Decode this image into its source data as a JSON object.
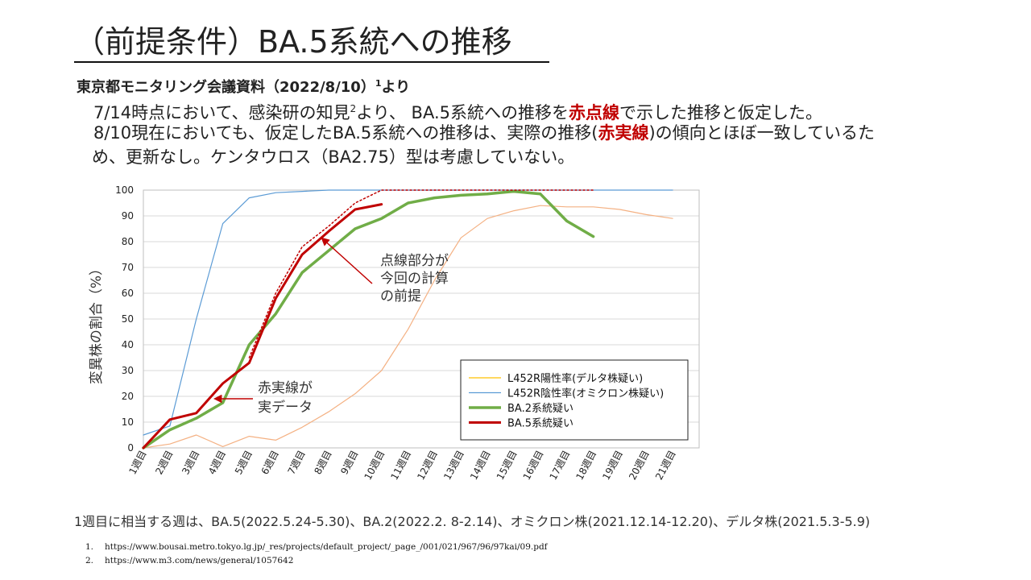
{
  "slide": {
    "title": "（前提条件）BA.5系統への推移",
    "subtitle_main": "東京都モニタリング会議資料（2022/8/10）",
    "subtitle_sup": "1",
    "subtitle_tail": "より",
    "line1_a": "7/14時点において、感染研の知見",
    "line1_sup": "2",
    "line1_b": "より、 BA.5系統への推移を",
    "line1_red": "赤点線",
    "line1_c": "で示した推移と仮定した。",
    "line2_a": "8/10現在においても、仮定したBA.5系統への推移は、実際の推移(",
    "line2_red": "赤実線",
    "line2_b": ")の傾向とほぼ一致しているた",
    "line3": "め、更新なし。ケンタウロス（BA2.75）型は考慮していない。",
    "footnote": "1週目に相当する週は、BA.5(2022.5.24-5.30)、BA.2(2022.2. 8-2.14)、オミクロン株(2021.12.14-12.20)、デルタ株(2021.5.3-5.9)",
    "ref1_num": "1.",
    "ref1": "https://www.bousai.metro.tokyo.lg.jp/_res/projects/default_project/_page_/001/021/967/96/97kai/09.pdf",
    "ref2_num": "2.",
    "ref2": "https://www.m3.com/news/general/1057642"
  },
  "chart_data": {
    "type": "line",
    "ylabel": "変異株の割合（%）",
    "xlabel": "",
    "ylim": [
      0,
      100
    ],
    "yticks": [
      0,
      10,
      20,
      30,
      40,
      50,
      60,
      70,
      80,
      90,
      100
    ],
    "categories": [
      "1週目",
      "2週目",
      "3週目",
      "4週目",
      "5週目",
      "6週目",
      "7週目",
      "8週目",
      "9週目",
      "10週目",
      "11週目",
      "12週目",
      "13週目",
      "14週目",
      "15週目",
      "16週目",
      "17週目",
      "18週目",
      "19週目",
      "20週目",
      "21週目"
    ],
    "grid": "horizontal",
    "legend_position": "bottom-right",
    "series": [
      {
        "name": "L452R陽性率(デルタ株疑い)",
        "color": "#f4b183",
        "width": 1.2,
        "style": "solid",
        "in_legend_color": "#ffc000",
        "values": [
          0,
          1.5,
          5,
          0.5,
          4.5,
          3,
          8,
          14,
          21,
          30,
          46,
          65,
          81.5,
          89,
          92,
          94,
          93.5,
          93.5,
          92.5,
          90.5,
          89
        ]
      },
      {
        "name": "L452R陰性率(オミクロン株疑い)",
        "color": "#5b9bd5",
        "width": 1.2,
        "style": "solid",
        "values": [
          5,
          8.5,
          50,
          87,
          97,
          99,
          99.5,
          100,
          100,
          100,
          100,
          100,
          100,
          100,
          100,
          100,
          100,
          100,
          100,
          100,
          100
        ]
      },
      {
        "name": "BA.2系統疑い",
        "color": "#70ad47",
        "width": 3.5,
        "style": "solid",
        "values": [
          0,
          7,
          11.5,
          17.5,
          40,
          52,
          68,
          76.5,
          85,
          89,
          95,
          97,
          98,
          98.5,
          99.5,
          98.5,
          88,
          82,
          null,
          null,
          null
        ]
      },
      {
        "name": "BA.5系統疑い",
        "color": "#c00000",
        "width": 3,
        "style": "solid",
        "values": [
          0,
          11,
          13.5,
          25,
          33,
          58,
          75,
          84,
          92.5,
          94.5,
          null,
          null,
          null,
          null,
          null,
          null,
          null,
          null,
          null,
          null,
          null
        ]
      },
      {
        "name": "",
        "color": "#c00000",
        "width": 1.5,
        "style": "dotted",
        "in_legend": false,
        "values": [
          0,
          null,
          null,
          null,
          35,
          60,
          78,
          86,
          95,
          100,
          100,
          100,
          100,
          100,
          100,
          100,
          100,
          100,
          null,
          null,
          null
        ]
      }
    ],
    "annotations": [
      {
        "text": "点線部分が今回の計算の前提",
        "lines": [
          "点線部分が",
          "今回の計算",
          "の前提"
        ]
      },
      {
        "text": "赤実線が実データ",
        "lines": [
          "赤実線が",
          "実データ"
        ]
      }
    ]
  }
}
